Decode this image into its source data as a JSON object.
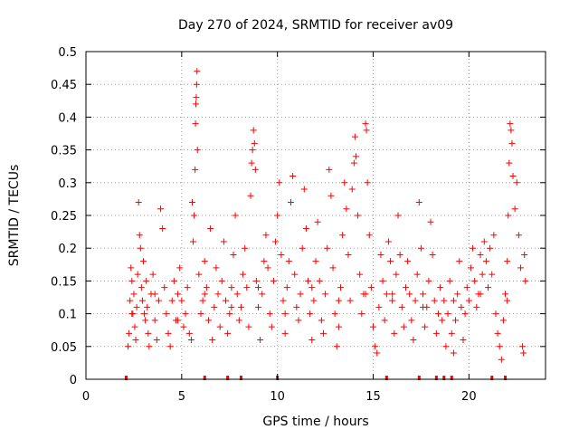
{
  "chart_data": {
    "type": "scatter",
    "title": "Day 270 of 2024, SRMTID for receiver av09",
    "xlabel": "GPS time / hours",
    "ylabel": "SRMTID / TECUs",
    "xlim": [
      0,
      24
    ],
    "ylim": [
      0,
      0.5
    ],
    "x_ticks": [
      0,
      5,
      10,
      15,
      20
    ],
    "x_tick_labels": [
      "0",
      "5",
      "10",
      "15",
      "20"
    ],
    "y_ticks": [
      0,
      0.05,
      0.1,
      0.15,
      0.2,
      0.25,
      0.3,
      0.35,
      0.4,
      0.45,
      0.5
    ],
    "y_tick_labels": [
      "0",
      "0.05",
      "0.1",
      "0.15",
      "0.2",
      "0.25",
      "0.3",
      "0.35",
      "0.4",
      "0.45",
      "0.5"
    ],
    "grid": true,
    "marker": "+",
    "color": "#ff0000",
    "series": [
      {
        "name": "SRMTID",
        "points": [
          [
            2.2,
            0.05
          ],
          [
            2.25,
            0.07
          ],
          [
            2.3,
            0.12
          ],
          [
            2.35,
            0.17
          ],
          [
            2.4,
            0.15
          ],
          [
            2.45,
            0.1
          ],
          [
            2.5,
            0.13
          ],
          [
            2.55,
            0.08
          ],
          [
            2.6,
            0.06
          ],
          [
            2.65,
            0.11
          ],
          [
            2.7,
            0.16
          ],
          [
            2.75,
            0.27
          ],
          [
            2.8,
            0.22
          ],
          [
            2.85,
            0.2
          ],
          [
            2.9,
            0.14
          ],
          [
            2.95,
            0.12
          ],
          [
            3.0,
            0.18
          ],
          [
            3.05,
            0.1
          ],
          [
            3.1,
            0.09
          ],
          [
            3.15,
            0.15
          ],
          [
            3.2,
            0.11
          ],
          [
            3.25,
            0.07
          ],
          [
            3.3,
            0.05
          ],
          [
            3.4,
            0.13
          ],
          [
            3.5,
            0.16
          ],
          [
            3.6,
            0.09
          ],
          [
            3.7,
            0.06
          ],
          [
            3.8,
            0.12
          ],
          [
            3.9,
            0.26
          ],
          [
            4.0,
            0.23
          ],
          [
            4.1,
            0.14
          ],
          [
            4.2,
            0.1
          ],
          [
            4.3,
            0.07
          ],
          [
            4.4,
            0.05
          ],
          [
            4.5,
            0.12
          ],
          [
            4.6,
            0.15
          ],
          [
            4.7,
            0.09
          ],
          [
            4.8,
            0.13
          ],
          [
            4.9,
            0.17
          ],
          [
            5.0,
            0.12
          ],
          [
            5.1,
            0.08
          ],
          [
            5.2,
            0.1
          ],
          [
            5.3,
            0.14
          ],
          [
            5.4,
            0.07
          ],
          [
            5.5,
            0.06
          ],
          [
            5.55,
            0.27
          ],
          [
            5.6,
            0.21
          ],
          [
            5.65,
            0.25
          ],
          [
            5.7,
            0.32
          ],
          [
            5.72,
            0.39
          ],
          [
            5.74,
            0.42
          ],
          [
            5.76,
            0.43
          ],
          [
            5.78,
            0.45
          ],
          [
            5.8,
            0.47
          ],
          [
            5.82,
            0.35
          ],
          [
            5.9,
            0.16
          ],
          [
            6.0,
            0.1
          ],
          [
            6.1,
            0.12
          ],
          [
            6.2,
            0.18
          ],
          [
            6.3,
            0.14
          ],
          [
            6.4,
            0.09
          ],
          [
            6.5,
            0.23
          ],
          [
            6.6,
            0.06
          ],
          [
            6.7,
            0.11
          ],
          [
            6.8,
            0.17
          ],
          [
            6.9,
            0.13
          ],
          [
            7.0,
            0.08
          ],
          [
            7.1,
            0.15
          ],
          [
            7.2,
            0.21
          ],
          [
            7.3,
            0.12
          ],
          [
            7.4,
            0.07
          ],
          [
            7.5,
            0.1
          ],
          [
            7.6,
            0.14
          ],
          [
            7.7,
            0.19
          ],
          [
            7.8,
            0.25
          ],
          [
            7.9,
            0.13
          ],
          [
            8.0,
            0.09
          ],
          [
            8.1,
            0.11
          ],
          [
            8.2,
            0.16
          ],
          [
            8.3,
            0.2
          ],
          [
            8.4,
            0.14
          ],
          [
            8.5,
            0.08
          ],
          [
            8.6,
            0.28
          ],
          [
            8.65,
            0.33
          ],
          [
            8.7,
            0.35
          ],
          [
            8.75,
            0.38
          ],
          [
            8.8,
            0.36
          ],
          [
            8.85,
            0.32
          ],
          [
            8.9,
            0.15
          ],
          [
            9.0,
            0.11
          ],
          [
            9.1,
            0.06
          ],
          [
            9.2,
            0.13
          ],
          [
            9.3,
            0.18
          ],
          [
            9.4,
            0.22
          ],
          [
            9.5,
            0.17
          ],
          [
            9.6,
            0.1
          ],
          [
            9.7,
            0.08
          ],
          [
            9.8,
            0.15
          ],
          [
            9.9,
            0.21
          ],
          [
            10.0,
            0.25
          ],
          [
            10.1,
            0.3
          ],
          [
            10.2,
            0.19
          ],
          [
            10.3,
            0.12
          ],
          [
            10.4,
            0.07
          ],
          [
            10.5,
            0.14
          ],
          [
            10.6,
            0.18
          ],
          [
            10.7,
            0.27
          ],
          [
            10.8,
            0.31
          ],
          [
            10.9,
            0.16
          ],
          [
            11.0,
            0.11
          ],
          [
            11.1,
            0.09
          ],
          [
            11.2,
            0.13
          ],
          [
            11.3,
            0.2
          ],
          [
            11.4,
            0.29
          ],
          [
            11.5,
            0.23
          ],
          [
            11.6,
            0.15
          ],
          [
            11.7,
            0.1
          ],
          [
            11.8,
            0.06
          ],
          [
            11.9,
            0.12
          ],
          [
            12.0,
            0.18
          ],
          [
            12.1,
            0.24
          ],
          [
            12.2,
            0.15
          ],
          [
            12.3,
            0.09
          ],
          [
            12.4,
            0.07
          ],
          [
            12.5,
            0.13
          ],
          [
            12.6,
            0.2
          ],
          [
            12.7,
            0.32
          ],
          [
            12.8,
            0.28
          ],
          [
            12.9,
            0.17
          ],
          [
            13.0,
            0.1
          ],
          [
            13.1,
            0.05
          ],
          [
            13.2,
            0.08
          ],
          [
            13.3,
            0.14
          ],
          [
            13.4,
            0.22
          ],
          [
            13.5,
            0.3
          ],
          [
            13.6,
            0.26
          ],
          [
            13.7,
            0.19
          ],
          [
            13.8,
            0.12
          ],
          [
            13.9,
            0.29
          ],
          [
            14.0,
            0.33
          ],
          [
            14.05,
            0.37
          ],
          [
            14.1,
            0.34
          ],
          [
            14.2,
            0.25
          ],
          [
            14.3,
            0.16
          ],
          [
            14.4,
            0.1
          ],
          [
            14.5,
            0.13
          ],
          [
            14.6,
            0.39
          ],
          [
            14.65,
            0.38
          ],
          [
            14.7,
            0.3
          ],
          [
            14.8,
            0.22
          ],
          [
            14.9,
            0.14
          ],
          [
            15.0,
            0.08
          ],
          [
            15.1,
            0.05
          ],
          [
            15.2,
            0.04
          ],
          [
            15.3,
            0.11
          ],
          [
            15.4,
            0.19
          ],
          [
            15.5,
            0.15
          ],
          [
            15.6,
            0.09
          ],
          [
            15.7,
            0.13
          ],
          [
            15.8,
            0.21
          ],
          [
            15.9,
            0.18
          ],
          [
            16.0,
            0.12
          ],
          [
            16.1,
            0.07
          ],
          [
            16.2,
            0.16
          ],
          [
            16.3,
            0.25
          ],
          [
            16.4,
            0.19
          ],
          [
            16.5,
            0.11
          ],
          [
            16.6,
            0.08
          ],
          [
            16.7,
            0.14
          ],
          [
            16.8,
            0.18
          ],
          [
            16.9,
            0.13
          ],
          [
            17.0,
            0.09
          ],
          [
            17.1,
            0.06
          ],
          [
            17.2,
            0.12
          ],
          [
            17.3,
            0.16
          ],
          [
            17.4,
            0.27
          ],
          [
            17.5,
            0.2
          ],
          [
            17.6,
            0.13
          ],
          [
            17.7,
            0.08
          ],
          [
            17.8,
            0.11
          ],
          [
            17.9,
            0.15
          ],
          [
            18.0,
            0.24
          ],
          [
            18.1,
            0.19
          ],
          [
            18.2,
            0.12
          ],
          [
            18.3,
            0.07
          ],
          [
            18.4,
            0.1
          ],
          [
            18.5,
            0.14
          ],
          [
            18.6,
            0.09
          ],
          [
            18.7,
            0.12
          ],
          [
            18.8,
            0.05
          ],
          [
            18.9,
            0.1
          ],
          [
            19.0,
            0.15
          ],
          [
            19.1,
            0.07
          ],
          [
            19.2,
            0.04
          ],
          [
            19.3,
            0.09
          ],
          [
            19.4,
            0.13
          ],
          [
            19.5,
            0.18
          ],
          [
            19.6,
            0.11
          ],
          [
            19.7,
            0.06
          ],
          [
            19.8,
            0.1
          ],
          [
            19.9,
            0.14
          ],
          [
            20.0,
            0.12
          ],
          [
            20.1,
            0.17
          ],
          [
            20.2,
            0.2
          ],
          [
            20.3,
            0.15
          ],
          [
            20.4,
            0.11
          ],
          [
            20.5,
            0.13
          ],
          [
            20.6,
            0.19
          ],
          [
            20.7,
            0.16
          ],
          [
            20.8,
            0.21
          ],
          [
            20.9,
            0.18
          ],
          [
            21.0,
            0.14
          ],
          [
            21.1,
            0.2
          ],
          [
            21.2,
            0.16
          ],
          [
            21.3,
            0.22
          ],
          [
            21.4,
            0.1
          ],
          [
            21.5,
            0.07
          ],
          [
            21.6,
            0.05
          ],
          [
            21.7,
            0.03
          ],
          [
            21.8,
            0.09
          ],
          [
            21.9,
            0.13
          ],
          [
            22.0,
            0.18
          ],
          [
            22.05,
            0.25
          ],
          [
            22.1,
            0.33
          ],
          [
            22.15,
            0.39
          ],
          [
            22.2,
            0.38
          ],
          [
            22.25,
            0.36
          ],
          [
            22.3,
            0.31
          ],
          [
            22.4,
            0.26
          ],
          [
            22.5,
            0.3
          ],
          [
            22.6,
            0.22
          ],
          [
            22.7,
            0.17
          ],
          [
            22.8,
            0.05
          ],
          [
            22.85,
            0.04
          ],
          [
            22.9,
            0.19
          ],
          [
            22.95,
            0.15
          ],
          [
            2.4,
            0.1
          ],
          [
            3.6,
            0.13
          ],
          [
            4.8,
            0.09
          ],
          [
            6.2,
            0.13
          ],
          [
            7.6,
            0.11
          ],
          [
            9.0,
            0.14
          ],
          [
            10.4,
            0.1
          ],
          [
            11.8,
            0.14
          ],
          [
            13.2,
            0.12
          ],
          [
            14.6,
            0.13
          ],
          [
            16.0,
            0.13
          ],
          [
            17.6,
            0.11
          ],
          [
            19.2,
            0.12
          ],
          [
            20.6,
            0.13
          ],
          [
            22.0,
            0.12
          ]
        ]
      }
    ],
    "gap_markers_x": [
      2.1,
      6.2,
      7.4,
      8.1,
      10.0,
      15.7,
      17.4,
      18.3,
      18.7,
      19.1,
      21.2,
      21.9
    ]
  }
}
